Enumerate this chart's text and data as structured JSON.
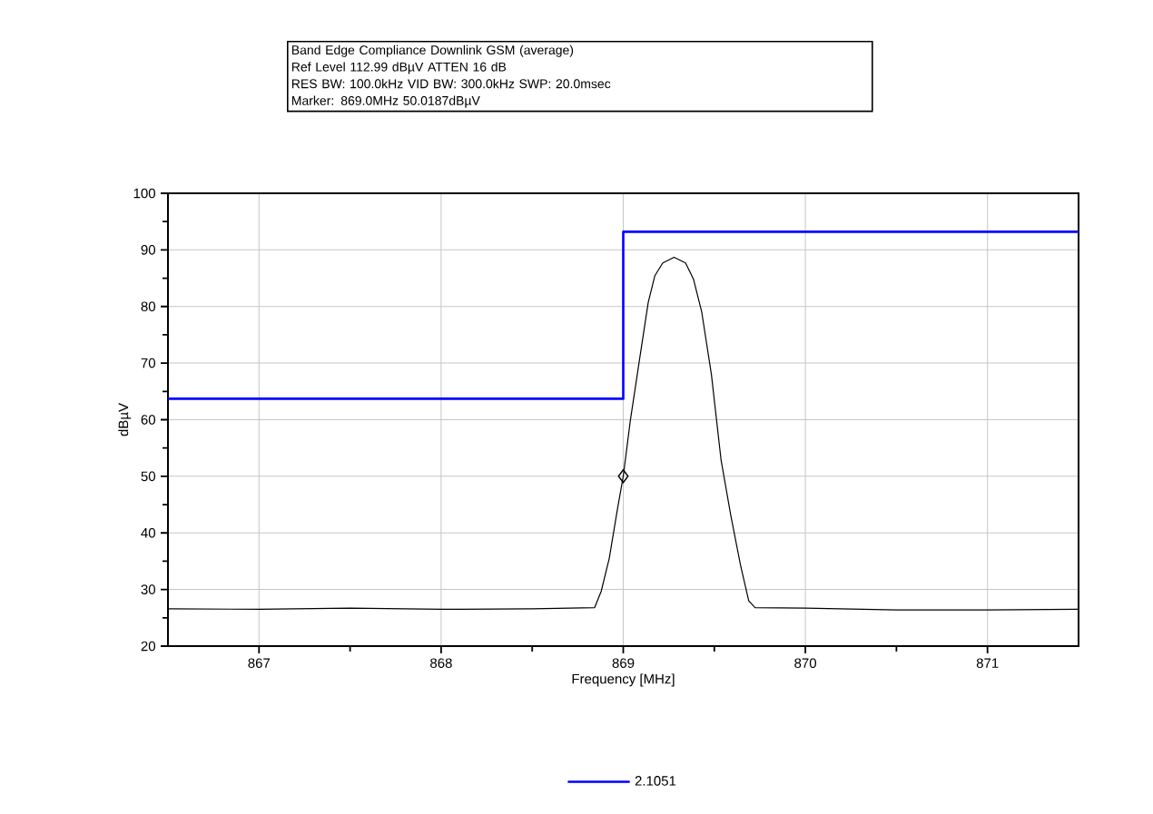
{
  "chart_data": {
    "type": "line",
    "title": "Band Edge Compliance Downlink GSM (average)",
    "annotations": [
      "Ref Level 112.99 dBµV     ATTEN 16 dB",
      "RES BW: 100.0kHz  VID BW: 300.0kHz  SWP: 20.0msec",
      "Marker: 869.0MHz  50.0187dBµV"
    ],
    "xlabel": "Frequency [MHz]",
    "ylabel": "dBµV",
    "xlim": [
      866.5,
      871.5
    ],
    "xticks": [
      867,
      868,
      869,
      870,
      871
    ],
    "ylim": [
      20,
      100
    ],
    "yticks": [
      20,
      30,
      40,
      50,
      60,
      70,
      80,
      90,
      100
    ],
    "grid": true,
    "legend": "bottom",
    "series": [
      {
        "name": "2.1051",
        "color": "#0000ff",
        "x": [
          866.5,
          869,
          869,
          871.5
        ],
        "values": [
          63.7,
          63.7,
          93.2,
          93.2
        ]
      },
      {
        "color": "#000000",
        "x": [
          866.5,
          867,
          867.5,
          868,
          868.5,
          868.843,
          868.879,
          868.923,
          868.968,
          869.0,
          869.039,
          869.093,
          869.137,
          869.173,
          869.217,
          869.279,
          869.342,
          869.386,
          869.431,
          869.484,
          869.537,
          869.591,
          869.644,
          869.689,
          869.724,
          870,
          870.5,
          871,
          871.5
        ],
        "values": [
          26.6,
          26.5,
          26.7,
          26.5,
          26.6,
          26.8,
          29.7,
          35.5,
          44.2,
          50,
          59.9,
          71.4,
          80.7,
          85.4,
          87.7,
          88.7,
          87.7,
          84.8,
          79.0,
          68.0,
          52.9,
          43.0,
          34.3,
          28.0,
          26.8,
          26.7,
          26.4,
          26.4,
          26.5
        ]
      },
      {
        "type": "scatter",
        "color": "#000000",
        "marker": "diamond",
        "x": [
          869.0
        ],
        "values": [
          50.0187
        ]
      }
    ]
  }
}
